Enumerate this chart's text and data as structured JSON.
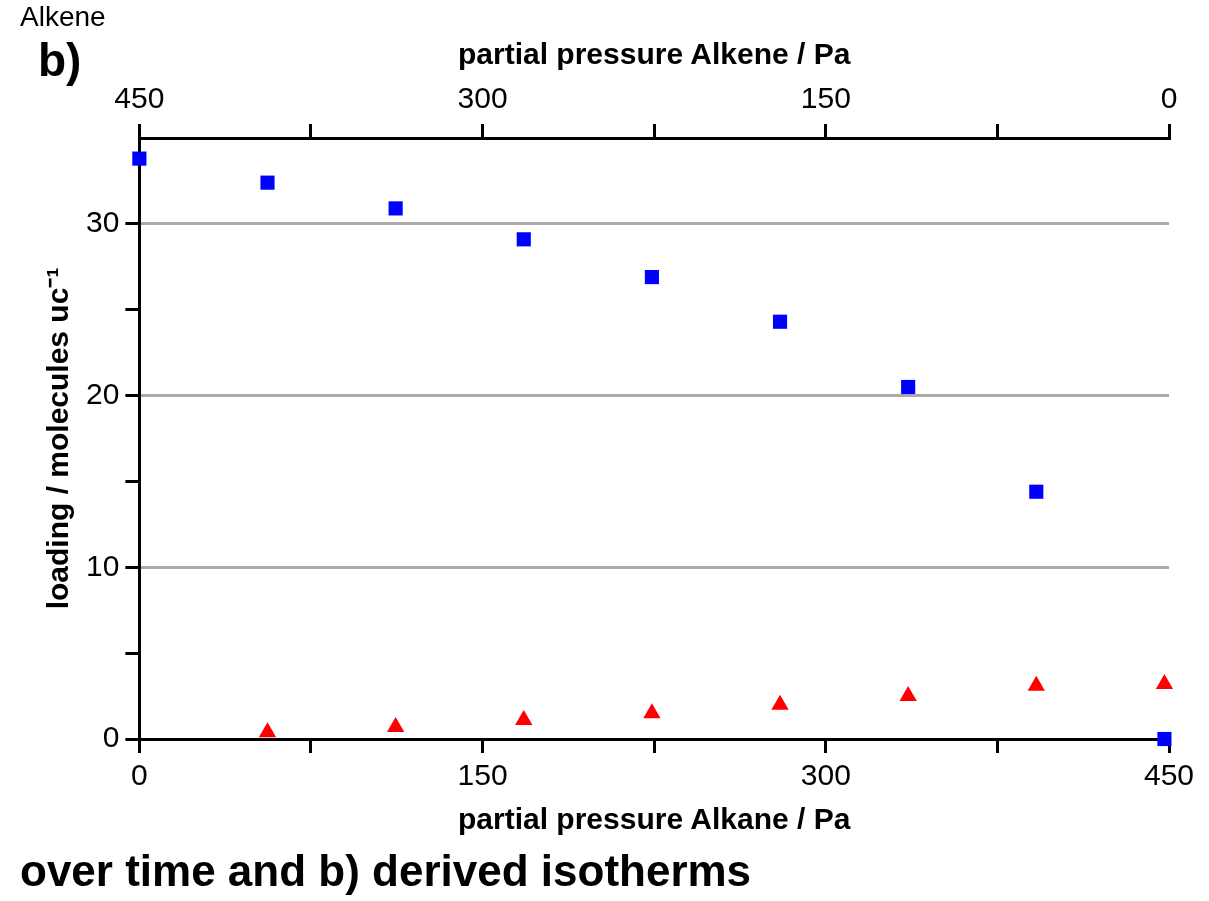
{
  "chart_data": {
    "type": "scatter",
    "xlabel": "partial pressure Alkane / Pa",
    "x2label": "partial pressure Alkene / Pa",
    "ylabel": "loading / molecules uc⁻¹",
    "annotations": [
      "Alkene",
      "b)",
      "over time and b) derived isotherms"
    ],
    "series": [
      {
        "color": "#0000ff",
        "marker": "square",
        "x": [
          0,
          56,
          112,
          168,
          224,
          280,
          336,
          392,
          448
        ],
        "values": [
          33.8,
          32.4,
          30.9,
          29.1,
          26.9,
          24.3,
          20.5,
          14.4,
          0
        ]
      },
      {
        "color": "#ff0000",
        "marker": "triangle",
        "x": [
          56,
          112,
          168,
          224,
          280,
          336,
          392,
          448
        ],
        "values": [
          0.4,
          0.7,
          1.1,
          1.5,
          2.0,
          2.5,
          3.1,
          3.2
        ]
      }
    ],
    "xlim": [
      0,
      450
    ],
    "xticks": [
      0,
      {
        "value": 75,
        "label": null
      },
      150,
      {
        "value": 225,
        "label": null
      },
      300,
      {
        "value": 375,
        "label": null
      },
      450
    ],
    "x2lim": [
      450,
      0
    ],
    "x2ticks": [
      450,
      {
        "value": 375,
        "label": null
      },
      300,
      {
        "value": 225,
        "label": null
      },
      150,
      {
        "value": 75,
        "label": null
      },
      0
    ],
    "ylim": [
      0,
      35
    ],
    "yticks": [
      0,
      {
        "value": 5,
        "label": null
      },
      10,
      {
        "value": 15,
        "label": null
      },
      20,
      {
        "value": 25,
        "label": null
      },
      30
    ],
    "grid": "y",
    "legend": false
  }
}
